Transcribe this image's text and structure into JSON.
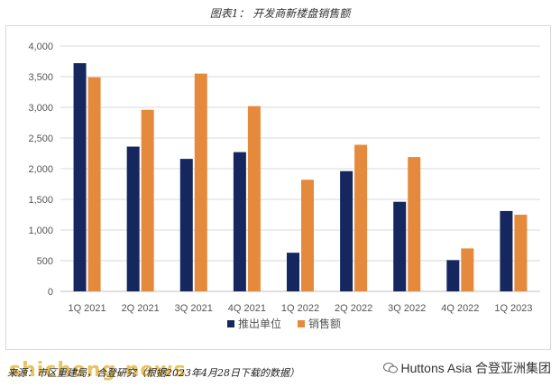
{
  "title": "图表1： 开发商新楼盘销售额",
  "source": "来源：市区重建局，合登研究（根据2023年4月28日下载的数据）",
  "brand": "Huttons Asia 合登亚洲集团",
  "watermark": "shicheng.news",
  "colors": {
    "series1": "#15275e",
    "series2": "#e58a3c",
    "grid": "#d9d9d9",
    "axis": "#bfbfbf",
    "text": "#555555"
  },
  "chart_data": {
    "type": "bar",
    "categories": [
      "1Q 2021",
      "2Q 2021",
      "3Q 2021",
      "4Q 2021",
      "1Q 2022",
      "2Q 2022",
      "3Q 2022",
      "4Q 2022",
      "1Q 2023"
    ],
    "series": [
      {
        "name": "推出单位",
        "values": [
          3720,
          2360,
          2160,
          2270,
          630,
          1960,
          1460,
          510,
          1310
        ]
      },
      {
        "name": "销售额",
        "values": [
          3490,
          2960,
          3550,
          3020,
          1820,
          2390,
          2190,
          700,
          1250
        ]
      }
    ],
    "ylim": [
      0,
      4000
    ],
    "yticks": [
      "0",
      "500",
      "1,000",
      "1,500",
      "2,000",
      "2,500",
      "3,000",
      "3,500",
      "4,000"
    ],
    "ytick_values": [
      0,
      500,
      1000,
      1500,
      2000,
      2500,
      3000,
      3500,
      4000
    ],
    "grid": true,
    "legend": "bottom-center"
  }
}
